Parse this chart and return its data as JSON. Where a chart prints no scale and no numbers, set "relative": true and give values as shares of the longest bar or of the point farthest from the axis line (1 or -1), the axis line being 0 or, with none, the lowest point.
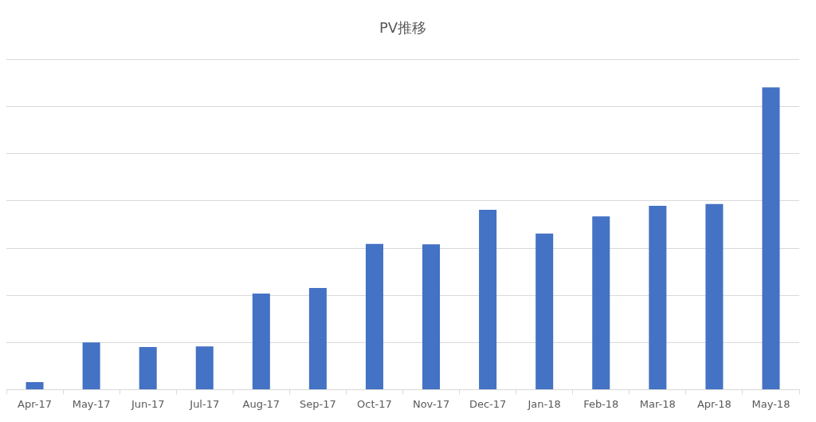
{
  "chart_data": {
    "type": "bar",
    "title": "PV推移",
    "relative": true,
    "categories": [
      "Apr-17",
      "May-17",
      "Jun-17",
      "Jul-17",
      "Aug-17",
      "Sep-17",
      "Oct-17",
      "Nov-17",
      "Dec-17",
      "Jan-18",
      "Feb-18",
      "Mar-18",
      "Apr-18",
      "May-18"
    ],
    "values": [
      0.025,
      0.156,
      0.141,
      0.143,
      0.318,
      0.336,
      0.482,
      0.481,
      0.595,
      0.516,
      0.573,
      0.608,
      0.614,
      1
    ],
    "color": "#4472c4",
    "grid": "y",
    "legend": false
  }
}
